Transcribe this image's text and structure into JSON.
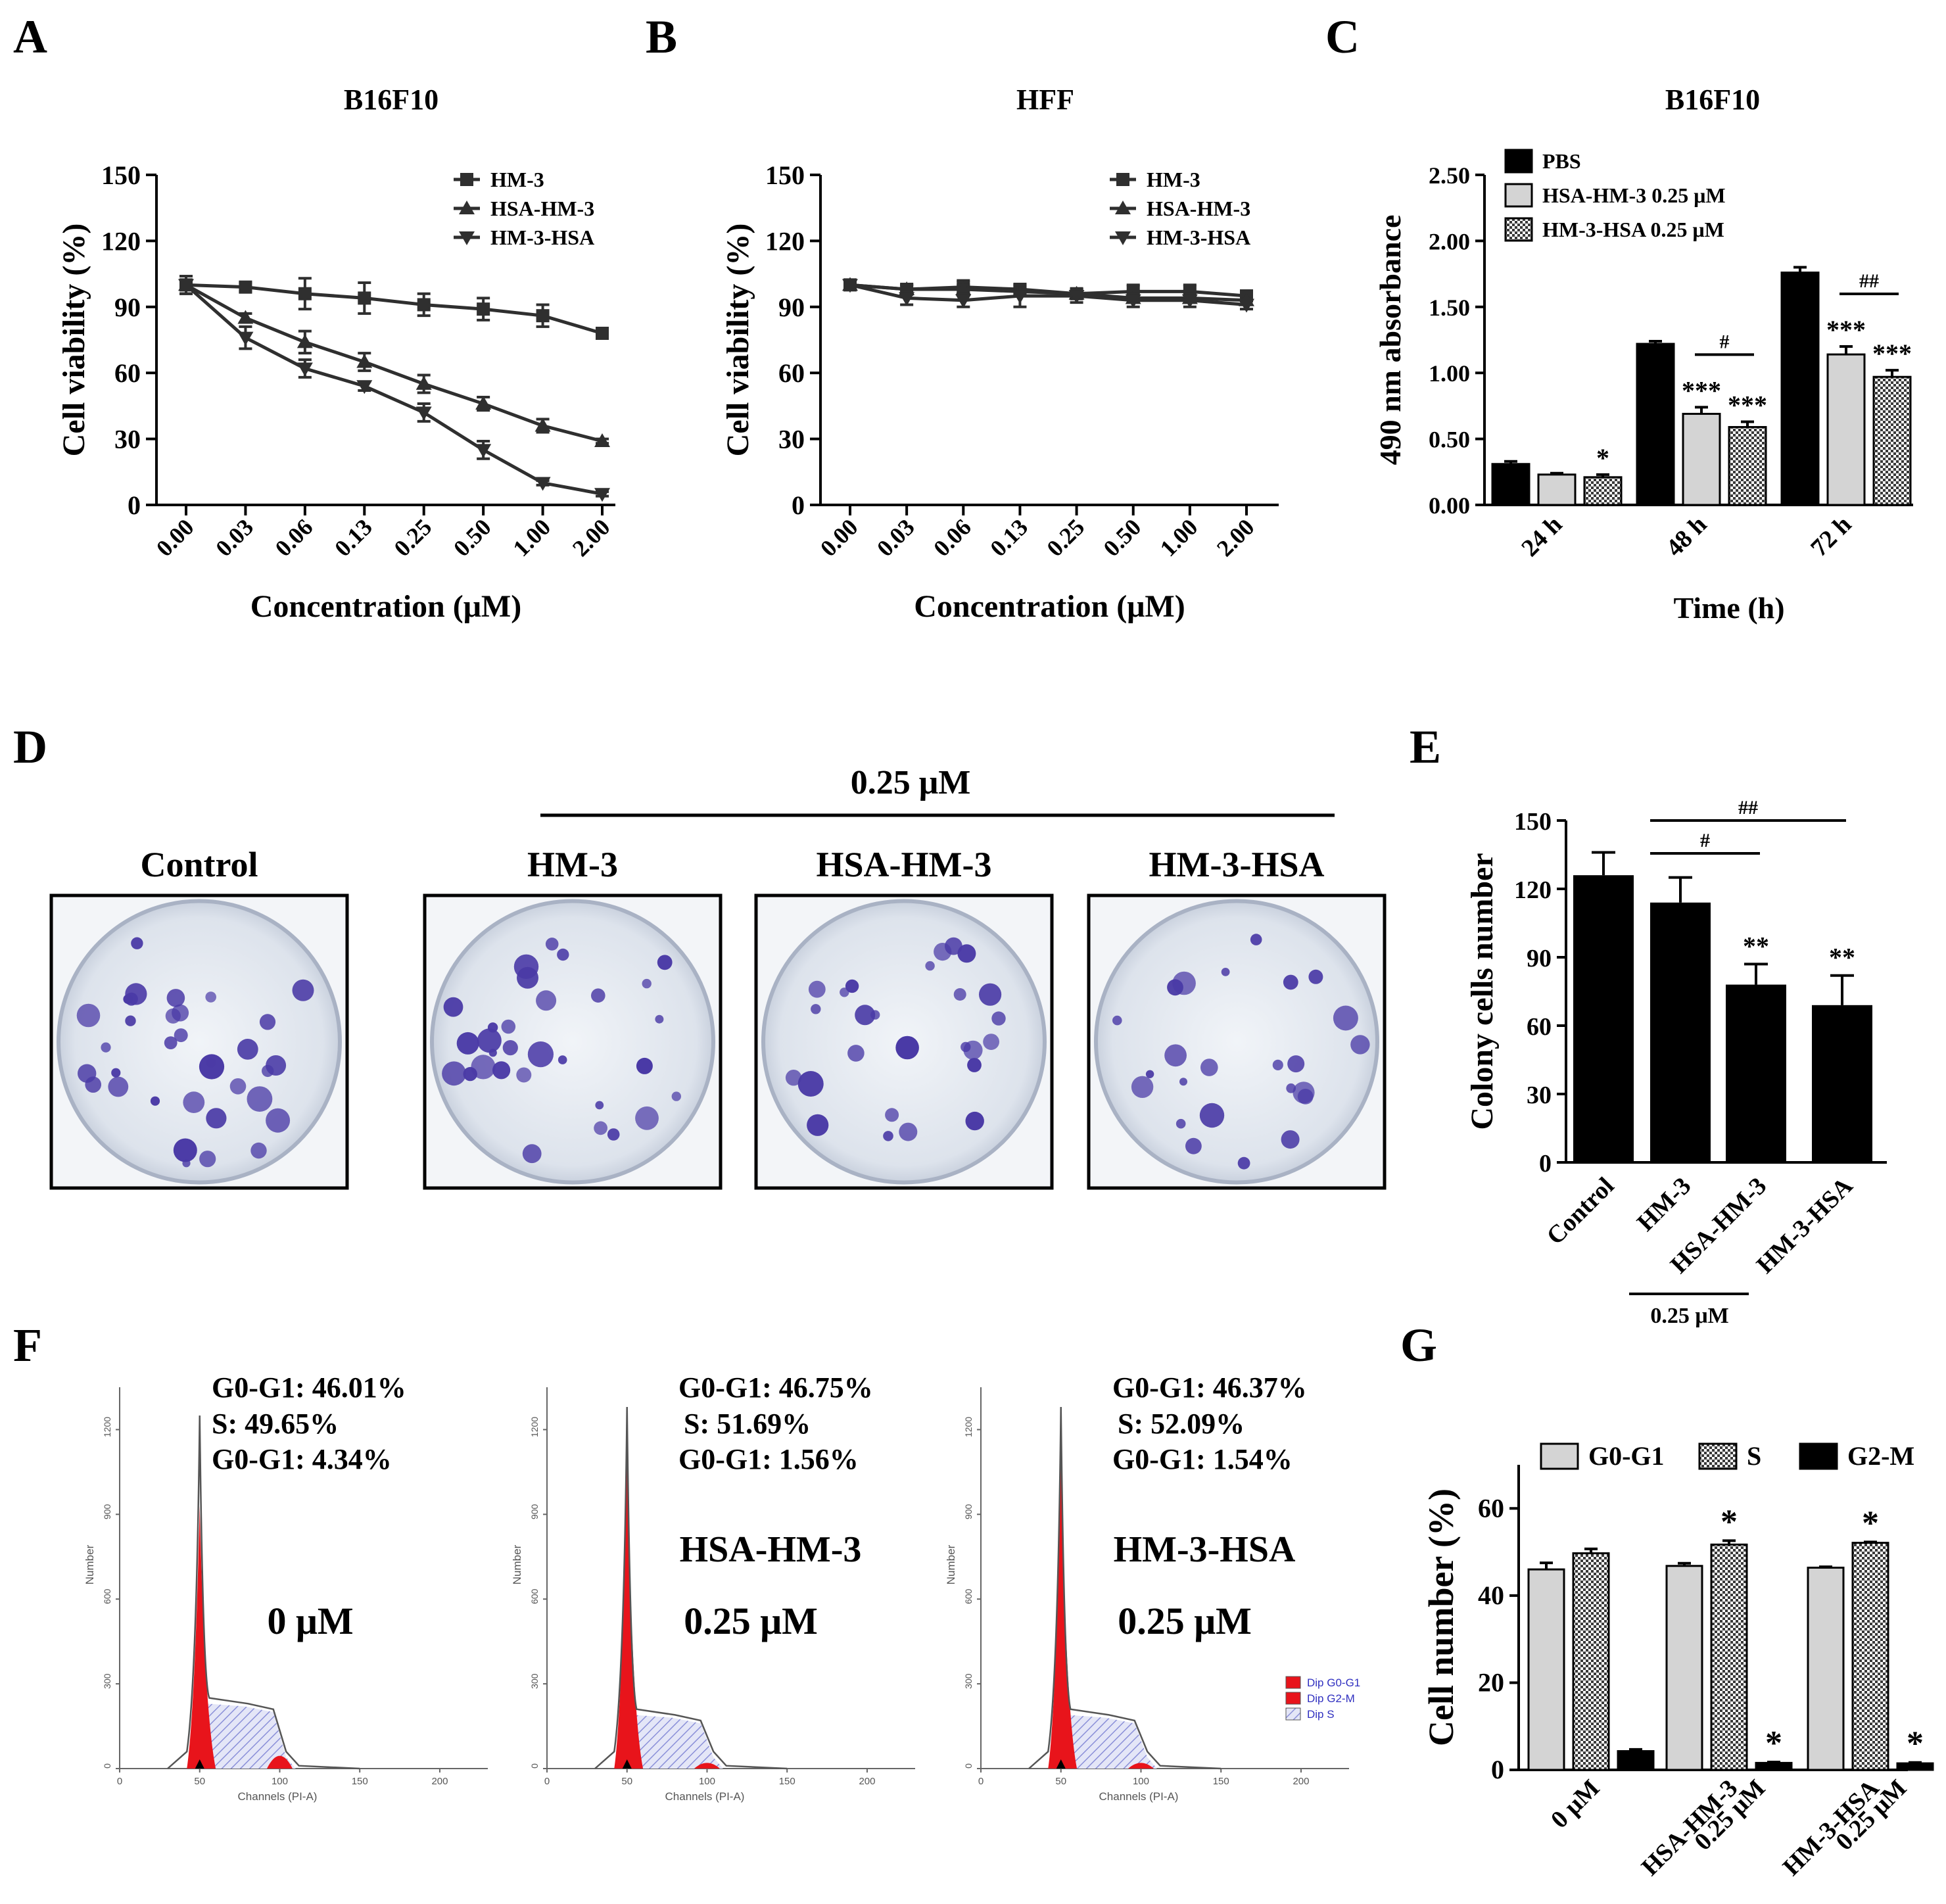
{
  "colors": {
    "dark": "#2f2f2f",
    "black": "#000000",
    "light_gray": "#d4d4d4",
    "checker_a": "#ffffff",
    "checker_b": "#3a3a3a",
    "red": "#e8141b",
    "hatch_blue": "#8a8fd8",
    "dish_purple": "#4a3aa6",
    "dish_bg": "#dfe5ee"
  },
  "panels": {
    "A": "A",
    "B": "B",
    "C": "C",
    "D": "D",
    "E": "E",
    "F": "F",
    "G": "G"
  },
  "chart_data": [
    {
      "id": "A",
      "type": "line",
      "title": "B16F10",
      "xlabel": "Concentration (μM)",
      "ylabel": "Cell viability (%)",
      "categories": [
        "0.00",
        "0.03",
        "0.06",
        "0.13",
        "0.25",
        "0.50",
        "1.00",
        "2.00"
      ],
      "ylim": [
        0,
        150
      ],
      "yticks": [
        "0",
        "30",
        "60",
        "90",
        "120",
        "150"
      ],
      "series": [
        {
          "name": "HM-3",
          "marker": "square",
          "values": [
            100,
            99,
            96,
            94,
            91,
            89,
            86,
            78
          ],
          "errors": [
            4,
            2,
            7,
            7,
            5,
            5,
            5,
            2
          ]
        },
        {
          "name": "HSA-HM-3",
          "marker": "triangle-up",
          "values": [
            100,
            85,
            74,
            65,
            55,
            46,
            36,
            29
          ],
          "errors": [
            4,
            2,
            5,
            4,
            4,
            3,
            3,
            1
          ]
        },
        {
          "name": "HM-3-HSA",
          "marker": "triangle-down",
          "values": [
            100,
            76,
            62,
            54,
            42,
            25,
            10,
            5
          ],
          "errors": [
            4,
            5,
            4,
            2,
            4,
            4,
            1,
            1
          ]
        }
      ]
    },
    {
      "id": "B",
      "type": "line",
      "title": "HFF",
      "xlabel": "Concentration (μM)",
      "ylabel": "Cell viability (%)",
      "categories": [
        "0.00",
        "0.03",
        "0.06",
        "0.13",
        "0.25",
        "0.50",
        "1.00",
        "2.00"
      ],
      "ylim": [
        0,
        150
      ],
      "yticks": [
        "0",
        "30",
        "60",
        "90",
        "120",
        "150"
      ],
      "series": [
        {
          "name": "HM-3",
          "marker": "square",
          "values": [
            100,
            98,
            99,
            98,
            96,
            97,
            97,
            95
          ],
          "errors": [
            2,
            2,
            3,
            2,
            2,
            3,
            3,
            2
          ]
        },
        {
          "name": "HSA-HM-3",
          "marker": "triangle-up",
          "values": [
            100,
            98,
            98,
            97,
            96,
            94,
            94,
            93
          ],
          "errors": [
            2,
            2,
            2,
            2,
            2,
            2,
            2,
            2
          ]
        },
        {
          "name": "HM-3-HSA",
          "marker": "triangle-down",
          "values": [
            100,
            94,
            93,
            95,
            95,
            93,
            93,
            91
          ],
          "errors": [
            2,
            3,
            3,
            5,
            3,
            3,
            3,
            2
          ]
        }
      ]
    },
    {
      "id": "C",
      "type": "bar",
      "title": "B16F10",
      "xlabel": "Time (h)",
      "ylabel": "490 nm absorbance",
      "categories": [
        "24 h",
        "48 h",
        "72 h"
      ],
      "ylim": [
        0,
        2.5
      ],
      "yticks": [
        "0.00",
        "0.50",
        "1.00",
        "1.50",
        "2.00",
        "2.50"
      ],
      "series": [
        {
          "name": "PBS",
          "fill": "black",
          "values": [
            0.31,
            1.22,
            1.76
          ],
          "errors": [
            0.02,
            0.02,
            0.04
          ]
        },
        {
          "name": "HSA-HM-3 0.25 μM",
          "fill": "light",
          "values": [
            0.23,
            0.69,
            1.14
          ],
          "errors": [
            0.01,
            0.05,
            0.06
          ]
        },
        {
          "name": "HM-3-HSA 0.25 μM",
          "fill": "checker",
          "values": [
            0.21,
            0.59,
            0.97
          ],
          "errors": [
            0.02,
            0.04,
            0.05
          ]
        }
      ],
      "annotations": [
        {
          "group": 0,
          "series": 2,
          "text": "*"
        },
        {
          "group": 1,
          "series": 1,
          "text": "***"
        },
        {
          "group": 1,
          "series": 2,
          "text": "***"
        },
        {
          "group": 2,
          "series": 1,
          "text": "***"
        },
        {
          "group": 2,
          "series": 2,
          "text": "***"
        }
      ],
      "brackets": [
        {
          "group": 1,
          "text": "#"
        },
        {
          "group": 2,
          "text": "##"
        }
      ]
    },
    {
      "id": "E",
      "type": "bar",
      "ylabel": "Colony cells number",
      "categories": [
        "Control",
        "HM-3",
        "HSA-HM-3",
        "HM-3-HSA"
      ],
      "values": [
        126,
        114,
        78,
        69
      ],
      "errors": [
        10,
        11,
        9,
        13
      ],
      "ylim": [
        0,
        150
      ],
      "yticks": [
        "0",
        "30",
        "60",
        "90",
        "120",
        "150"
      ],
      "annotations": [
        "",
        "",
        "**",
        "**"
      ],
      "brackets": [
        {
          "from": 1,
          "to": 2,
          "text": "#"
        },
        {
          "from": 1,
          "to": 3,
          "text": "##"
        }
      ],
      "bottom_label": "0.25 μM"
    },
    {
      "id": "G",
      "type": "bar",
      "ylabel": "Cell number (%)",
      "categories": [
        "0 μM",
        "HSA-HM-3\n0.25 μM",
        "HM-3-HSA\n0.25 μM"
      ],
      "ylim": [
        0,
        70
      ],
      "yticks": [
        "0",
        "20",
        "40",
        "60"
      ],
      "series": [
        {
          "name": "G0-G1",
          "fill": "light",
          "values": [
            46.0,
            46.8,
            46.4
          ],
          "errors": [
            1.5,
            0.6,
            0.2
          ]
        },
        {
          "name": "S",
          "fill": "checker",
          "values": [
            49.7,
            51.7,
            52.1
          ],
          "errors": [
            1.0,
            0.9,
            0.2
          ]
        },
        {
          "name": "G2-M",
          "fill": "black",
          "values": [
            4.3,
            1.6,
            1.5
          ],
          "errors": [
            0.4,
            0.2,
            0.2
          ]
        }
      ],
      "annotations": [
        {
          "group": 1,
          "series": 1,
          "text": "*"
        },
        {
          "group": 1,
          "series": 2,
          "text": "*"
        },
        {
          "group": 2,
          "series": 1,
          "text": "*"
        },
        {
          "group": 2,
          "series": 2,
          "text": "*"
        }
      ]
    }
  ],
  "panel_D": {
    "header": "0.25 μM",
    "dishes": [
      {
        "label": "Control",
        "colonies": 34
      },
      {
        "label": "HM-3",
        "colonies": 30
      },
      {
        "label": "HSA-HM-3",
        "colonies": 26
      },
      {
        "label": "HM-3-HSA",
        "colonies": 24
      }
    ]
  },
  "panel_F": {
    "plots": [
      {
        "g0g1": "G0-G1: 46.01%",
        "s": "S: 49.65%",
        "g2m": "G0-G1: 4.34%",
        "name": "",
        "dose": "0 μM"
      },
      {
        "g0g1": "G0-G1: 46.75%",
        "s": "S: 51.69%",
        "g2m": "G0-G1: 1.56%",
        "name": "HSA-HM-3",
        "dose": "0.25 μM"
      },
      {
        "g0g1": "G0-G1: 46.37%",
        "s": "S: 52.09%",
        "g2m": "G0-G1: 1.54%",
        "name": "HM-3-HSA",
        "dose": "0.25 μM"
      }
    ],
    "y_axis_label": "Number",
    "x_axis_label": "Channels (PI-A)",
    "x_ticks": [
      "0",
      "50",
      "100",
      "150",
      "200"
    ],
    "y_ticks": [
      "0",
      "300",
      "600",
      "900",
      "1200"
    ],
    "legend": [
      "Dip G0-G1",
      "Dip G2-M",
      "Dip S"
    ]
  }
}
